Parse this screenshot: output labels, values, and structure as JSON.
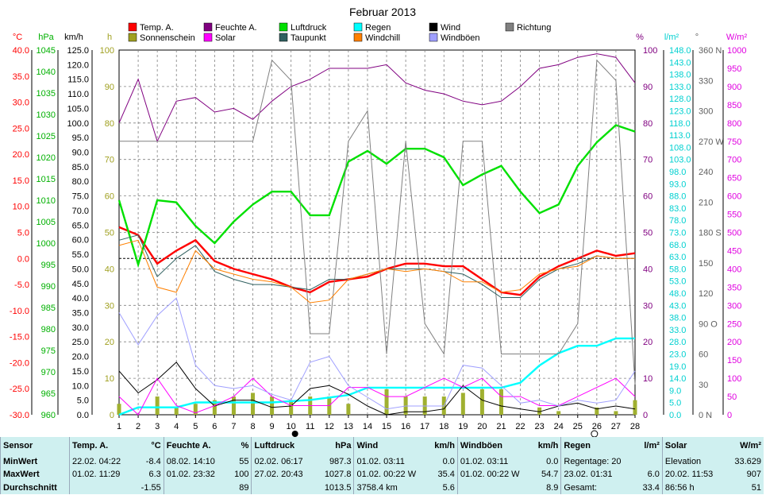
{
  "title": "Februar 2013",
  "axes": {
    "temp": {
      "unit": "°C",
      "ticks": [
        "40.0",
        "35.0",
        "30.0",
        "25.0",
        "20.0",
        "15.0",
        "10.0",
        "5.0",
        "0.0",
        "-5.0",
        "-10.0",
        "-15.0",
        "-20.0",
        "-25.0",
        "-30.0"
      ],
      "color": "#ff0000"
    },
    "pressure": {
      "unit": "hPa",
      "ticks": [
        "1045",
        "1040",
        "1035",
        "1030",
        "1025",
        "1020",
        "1015",
        "1010",
        "1005",
        "1000",
        "995",
        "990",
        "985",
        "980",
        "975",
        "970",
        "965",
        "960"
      ],
      "color": "#00b000"
    },
    "wind": {
      "unit": "km/h",
      "ticks": [
        "125.0",
        "120.0",
        "115.0",
        "110.0",
        "105.0",
        "100.0",
        "95.0",
        "90.0",
        "85.0",
        "80.0",
        "75.0",
        "70.0",
        "65.0",
        "60.0",
        "55.0",
        "50.0",
        "45.0",
        "40.0",
        "35.0",
        "30.0",
        "25.0",
        "20.0",
        "15.0",
        "10.0",
        "5.0",
        "0.0"
      ],
      "color": "#000000"
    },
    "sun": {
      "unit": "h",
      "ticks": [
        "100",
        "90",
        "80",
        "70",
        "60",
        "50",
        "40",
        "30",
        "20",
        "10",
        "0"
      ],
      "color": "#a0a020"
    },
    "humidity": {
      "unit": "%",
      "ticks": [
        "100",
        "90",
        "80",
        "70",
        "60",
        "50",
        "40",
        "30",
        "20",
        "10",
        "0"
      ],
      "color": "#800080"
    },
    "rain": {
      "unit": "l/m²",
      "ticks": [
        "148.0",
        "143.0",
        "138.0",
        "133.0",
        "128.0",
        "123.0",
        "118.0",
        "113.0",
        "108.0",
        "103.0",
        "98.0",
        "93.0",
        "88.0",
        "83.0",
        "78.0",
        "73.0",
        "68.0",
        "63.0",
        "58.0",
        "53.0",
        "48.0",
        "43.0",
        "38.0",
        "33.0",
        "28.0",
        "23.0",
        "19.0",
        "14.0",
        "9.0",
        "5.0",
        "0.0"
      ],
      "color": "#00d0d0"
    },
    "direction": {
      "unit": "°",
      "ticks": [
        "360 N",
        "330",
        "300",
        "270 W",
        "240",
        "210",
        "180 S",
        "150",
        "120",
        "90 O",
        "60",
        "30",
        "0 N"
      ],
      "color": "#606060"
    },
    "solar": {
      "unit": "W/m²",
      "ticks": [
        "1000",
        "950",
        "900",
        "850",
        "800",
        "750",
        "700",
        "650",
        "600",
        "550",
        "500",
        "450",
        "400",
        "350",
        "300",
        "250",
        "200",
        "150",
        "100",
        "50",
        "0"
      ],
      "color": "#e000e0"
    },
    "x_ticks": [
      "1",
      "2",
      "3",
      "4",
      "5",
      "6",
      "7",
      "8",
      "9",
      "10",
      "11",
      "12",
      "13",
      "14",
      "15",
      "16",
      "17",
      "18",
      "19",
      "20",
      "21",
      "22",
      "23",
      "24",
      "25",
      "26",
      "27",
      "28"
    ]
  },
  "legend": [
    {
      "label": "Temp. A.",
      "color": "#ff0000"
    },
    {
      "label": "Feuchte A.",
      "color": "#800080"
    },
    {
      "label": "Luftdruck",
      "color": "#00e000"
    },
    {
      "label": "Regen",
      "color": "#00ffff"
    },
    {
      "label": "Wind",
      "color": "#000000"
    },
    {
      "label": "Richtung",
      "color": "#808080"
    },
    {
      "label": "Sonnenschein",
      "color": "#a0a020"
    },
    {
      "label": "Solar",
      "color": "#ff00ff"
    },
    {
      "label": "Taupunkt",
      "color": "#306060"
    },
    {
      "label": "Windchill",
      "color": "#ff8000"
    },
    {
      "label": "Windböen",
      "color": "#a0a0ff"
    }
  ],
  "chart_data": {
    "type": "line",
    "title": "Februar 2013",
    "x": [
      1,
      2,
      3,
      4,
      5,
      6,
      7,
      8,
      9,
      10,
      11,
      12,
      13,
      14,
      15,
      16,
      17,
      18,
      19,
      20,
      21,
      22,
      23,
      24,
      25,
      26,
      27,
      28
    ],
    "grid": true,
    "series": [
      {
        "name": "Temp. A.",
        "axis": "temp",
        "color": "#ff0000",
        "values": [
          6.0,
          4.5,
          -1.0,
          1.5,
          3.5,
          -0.5,
          -2.0,
          -3.0,
          -4.0,
          -5.5,
          -6.5,
          -4.5,
          -4.0,
          -3.5,
          -2.0,
          -1.0,
          -1.0,
          -1.5,
          -1.5,
          -4.0,
          -6.5,
          -7.0,
          -3.5,
          -1.5,
          0.0,
          1.5,
          0.5,
          1.0
        ]
      },
      {
        "name": "Feuchte A.",
        "axis": "humidity",
        "color": "#800080",
        "values": [
          80,
          92,
          75,
          86,
          87,
          83,
          84,
          81,
          86,
          90,
          92,
          95,
          95,
          95,
          96,
          91,
          89,
          88,
          86,
          85,
          86,
          90,
          95,
          96,
          98,
          99,
          98,
          91
        ]
      },
      {
        "name": "Luftdruck",
        "axis": "pressure",
        "color": "#00e000",
        "values": [
          1010,
          995,
          1010,
          1009.5,
          1004,
          1000,
          1005,
          1009,
          1012,
          1012,
          1006.5,
          1006.5,
          1019,
          1021.5,
          1018.5,
          1022,
          1022,
          1020,
          1013.5,
          1016,
          1018,
          1012,
          1007,
          1009,
          1018,
          1023.5,
          1027.5,
          1026
        ]
      },
      {
        "name": "Regen",
        "axis": "rain",
        "color": "#00ffff",
        "values": [
          0,
          3,
          3,
          3,
          5,
          5,
          5,
          5,
          5,
          5.5,
          6,
          7,
          8,
          11,
          11,
          11,
          11,
          11,
          11,
          11,
          11,
          13,
          20,
          25,
          28,
          28,
          31,
          31
        ]
      },
      {
        "name": "Wind",
        "axis": "wind",
        "color": "#000000",
        "values": [
          15,
          7.5,
          12,
          18,
          9,
          3,
          5,
          5,
          2.5,
          3,
          9,
          10,
          7,
          3,
          0,
          1,
          1,
          2,
          10,
          5,
          3,
          2,
          1,
          3,
          4,
          2,
          3,
          2
        ]
      },
      {
        "name": "Richtung",
        "axis": "direction",
        "color": "#808080",
        "values": [
          270,
          270,
          270,
          270,
          270,
          270,
          270,
          270,
          350,
          330,
          80,
          80,
          270,
          300,
          60,
          270,
          90,
          60,
          270,
          270,
          60,
          60,
          60,
          60,
          90,
          350,
          330,
          30
        ]
      },
      {
        "name": "Solar",
        "axis": "solar",
        "color": "#ff00ff",
        "values": [
          50,
          0,
          100,
          25,
          5,
          25,
          50,
          100,
          50,
          25,
          25,
          25,
          75,
          75,
          50,
          50,
          75,
          100,
          75,
          100,
          50,
          50,
          25,
          25,
          50,
          75,
          100,
          50
        ]
      },
      {
        "name": "Taupunkt",
        "axis": "temp",
        "color": "#306060",
        "values": [
          3.5,
          4.5,
          -3.5,
          0,
          2.5,
          -2.5,
          -4,
          -5,
          -5,
          -5.5,
          -6,
          -4,
          -4,
          -3,
          -2,
          -2,
          -2,
          -2.5,
          -3,
          -5,
          -7.5,
          -7.5,
          -4,
          -2,
          -1,
          0.5,
          0,
          0
        ]
      },
      {
        "name": "Windchill",
        "axis": "temp",
        "color": "#ff8000",
        "values": [
          2.5,
          3.5,
          -5.5,
          -6.5,
          1.5,
          -2,
          -3,
          -4,
          -4.5,
          -5.5,
          -8.5,
          -8,
          -4,
          -3,
          -2,
          -2.5,
          -2,
          -2.5,
          -4.5,
          -4.5,
          -6.5,
          -6,
          -3,
          -2,
          -1.5,
          0.5,
          0,
          0
        ]
      },
      {
        "name": "Windböen",
        "axis": "wind",
        "color": "#a0a0ff",
        "values": [
          35,
          24,
          34,
          40,
          17,
          10,
          9,
          10,
          7,
          5,
          18,
          20,
          10,
          6,
          2,
          3,
          3,
          3,
          17,
          16,
          10,
          4,
          5,
          3,
          5,
          4,
          5,
          15
        ]
      },
      {
        "name": "Sonnenschein",
        "axis": "sun",
        "type": "bar",
        "color": "#a0b030",
        "values": [
          3,
          0,
          5,
          2,
          3,
          4,
          5,
          6,
          5,
          4,
          5,
          5,
          3,
          0,
          7,
          5,
          5,
          5,
          6,
          7,
          7,
          0,
          2,
          1,
          0,
          2,
          1,
          4
        ]
      }
    ]
  },
  "stats": {
    "headers": [
      {
        "label": "Sensor",
        "unit": ""
      },
      {
        "label": "Temp. A.",
        "unit": "°C"
      },
      {
        "label": "Feuchte A.",
        "unit": "%"
      },
      {
        "label": "Luftdruck",
        "unit": "hPa"
      },
      {
        "label": "Wind",
        "unit": "km/h"
      },
      {
        "label": "Windböen",
        "unit": "km/h"
      },
      {
        "label": "Regen",
        "unit": "l/m²"
      },
      {
        "label": "Solar",
        "unit": "W/m²"
      }
    ],
    "rows": [
      {
        "label": "MinWert",
        "cells": [
          {
            "a": "22.02.  04:22",
            "b": "-8.4"
          },
          {
            "a": "08.02.  14:10",
            "b": "55"
          },
          {
            "a": "02.02.  06:17",
            "b": "987.3"
          },
          {
            "a": "01.02.  03:11",
            "b": "0.0"
          },
          {
            "a": "01.02.  03:11",
            "b": "0.0"
          },
          {
            "a": "Regentage: 20",
            "b": ""
          },
          {
            "a": "Elevation",
            "b": "33.629"
          }
        ]
      },
      {
        "label": "MaxWert",
        "cells": [
          {
            "a": "01.02.  11:29",
            "b": "6.3"
          },
          {
            "a": "01.02.  23:32",
            "b": "100"
          },
          {
            "a": "27.02.  20:43",
            "b": "1027.8"
          },
          {
            "a": "01.02.  00:22  W",
            "b": "35.4"
          },
          {
            "a": "01.02.  00:22  W",
            "b": "54.7"
          },
          {
            "a": "23.02.  01:31",
            "b": "6.0"
          },
          {
            "a": "20.02.  11:53",
            "b": "907"
          }
        ]
      },
      {
        "label": "Durchschnitt",
        "cells": [
          {
            "a": "",
            "b": "-1.55"
          },
          {
            "a": "",
            "b": "89"
          },
          {
            "a": "",
            "b": "1013.5"
          },
          {
            "a": "3758.4 km",
            "b": "5.6"
          },
          {
            "a": "",
            "b": "8.9"
          },
          {
            "a": "Gesamt:",
            "b": "33.4"
          },
          {
            "a": "86:56 h",
            "b": "51"
          }
        ]
      }
    ]
  }
}
